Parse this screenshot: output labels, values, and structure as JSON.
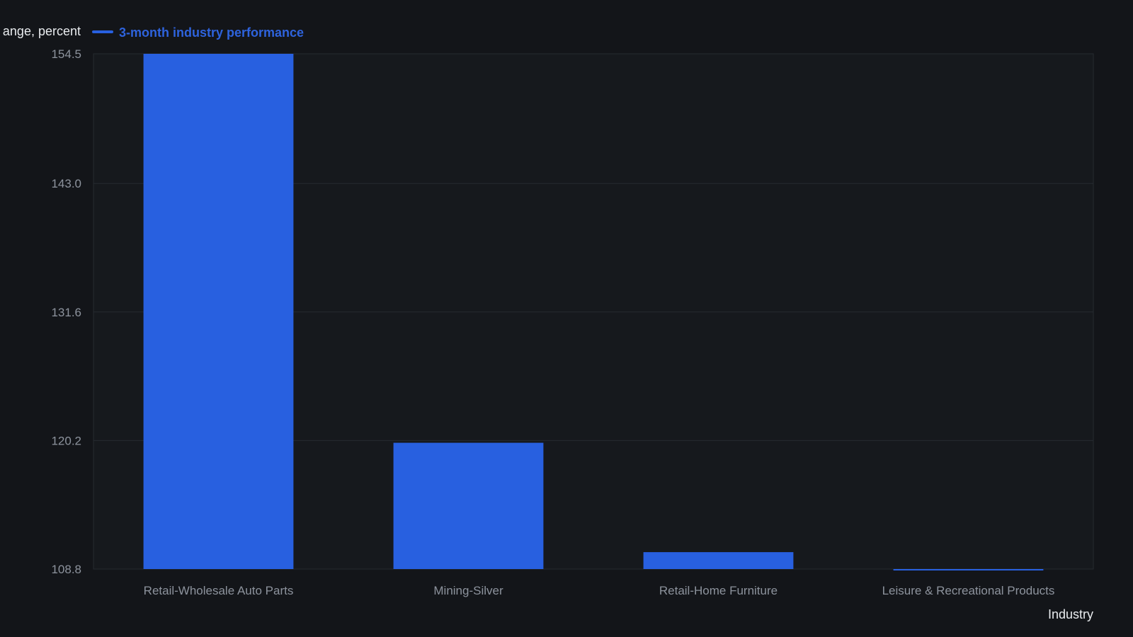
{
  "chart_data": {
    "type": "bar",
    "categories": [
      "Retail-Wholesale Auto Parts",
      "Mining-Silver",
      "Retail-Home Furniture",
      "Leisure & Recreational Products"
    ],
    "series": [
      {
        "name": "3-month industry performance",
        "values": [
          154.5,
          120.0,
          110.3,
          108.7
        ]
      }
    ],
    "ylabel": "ange, percent",
    "xlabel": "Industry",
    "ylim": [
      108.8,
      154.5
    ],
    "yticks": [
      "154.5",
      "143.0",
      "131.6",
      "120.2",
      "108.8"
    ],
    "grid": true,
    "legend_position": "top",
    "colors": {
      "background": "#131519",
      "plot_background": "#16191d",
      "bar": "#2860e0",
      "grid": "#262a30",
      "legend_text": "#2e63dd"
    }
  }
}
